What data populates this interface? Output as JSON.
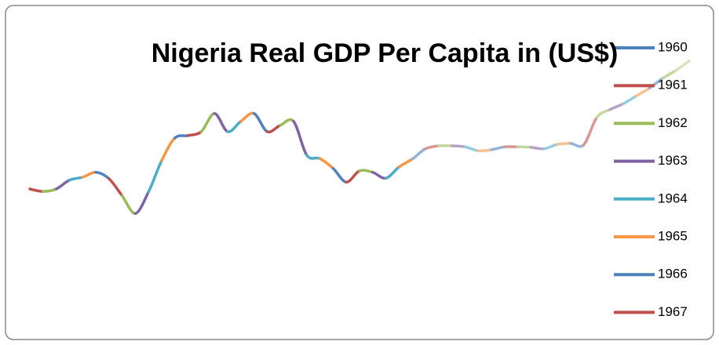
{
  "chart_data": {
    "type": "line",
    "title": "Nigeria Real GDP Per Capita in (US$)",
    "categories": [
      "1960",
      "1961",
      "1962",
      "1963",
      "1964",
      "1965",
      "1966",
      "1967",
      null,
      null,
      null,
      null,
      null,
      null,
      null,
      null,
      null,
      null,
      null,
      null,
      null,
      null,
      null,
      null,
      null,
      null,
      null,
      null,
      null,
      null,
      null,
      null,
      null,
      null,
      null,
      null,
      null,
      null,
      null,
      null,
      null,
      null,
      null,
      null,
      null,
      null,
      null,
      null,
      null,
      null,
      null
    ],
    "values": [
      2.8,
      2.75,
      2.8,
      2.98,
      3.04,
      3.14,
      3.01,
      2.66,
      2.3,
      2.74,
      3.38,
      3.84,
      3.89,
      3.97,
      4.34,
      3.97,
      4.18,
      4.34,
      3.97,
      4.1,
      4.18,
      3.49,
      3.42,
      3.22,
      2.94,
      3.17,
      3.14,
      3.02,
      3.25,
      3.41,
      3.62,
      3.68,
      3.68,
      3.66,
      3.58,
      3.6,
      3.66,
      3.66,
      3.65,
      3.62,
      3.71,
      3.73,
      3.7,
      4.26,
      4.42,
      4.54,
      4.7,
      4.86,
      5.06,
      5.22,
      5.41
    ],
    "colors": [
      "#4f81bd",
      "#c0504d",
      "#9bbb59",
      "#8064a2",
      "#4bacc6",
      "#f79646",
      "#4f81bd",
      "#c0504d",
      "#9bbb59",
      "#8064a2",
      "#4bacc6",
      "#f79646",
      "#4f81bd",
      "#c0504d",
      "#9bbb59",
      "#8064a2",
      "#4bacc6",
      "#f79646",
      "#4f81bd",
      "#c0504d",
      "#9bbb59",
      "#8064a2",
      "#4bacc6",
      "#f79646",
      "#4f81bd",
      "#c0504d",
      "#9bbb59",
      "#8064a2",
      "#4bacc6",
      "#f79646",
      "#95b3d7",
      "#d99694",
      "#c3d69b",
      "#b3a2c7",
      "#93cddd",
      "#fac090",
      "#95b3d7",
      "#d99694",
      "#c3d69b",
      "#b3a2c7",
      "#93cddd",
      "#fac090",
      "#95b3d7",
      "#d99694",
      "#c3d69b",
      "#b3a2c7",
      "#93cddd",
      "#fac090",
      "#95b3d7",
      "#c3d69b",
      "#d7e4bd"
    ],
    "ylim": [
      0,
      6
    ],
    "yticks": [
      0,
      1,
      2,
      3,
      4,
      5,
      6
    ],
    "grid": true,
    "legend": "right"
  }
}
